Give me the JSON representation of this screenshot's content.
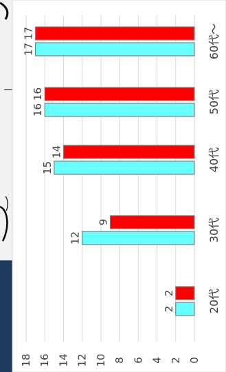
{
  "chart_data": {
    "type": "bar",
    "orientation": "horizontal-rotated",
    "categories": [
      "20代",
      "30代",
      "40代",
      "50代",
      "60代～"
    ],
    "series": [
      {
        "values": [
          2,
          12,
          15,
          16,
          17
        ],
        "color": "#66ffff"
      },
      {
        "values": [
          2,
          9,
          14,
          16,
          17
        ],
        "color": "#ff0000"
      }
    ],
    "ylim": [
      0,
      18
    ],
    "tick_step": 2,
    "ticks": [
      "0",
      "2",
      "4",
      "6",
      "8",
      "10",
      "12",
      "14",
      "16",
      "18"
    ],
    "grid": true,
    "title": "",
    "xlabel": "",
    "ylabel": ""
  }
}
